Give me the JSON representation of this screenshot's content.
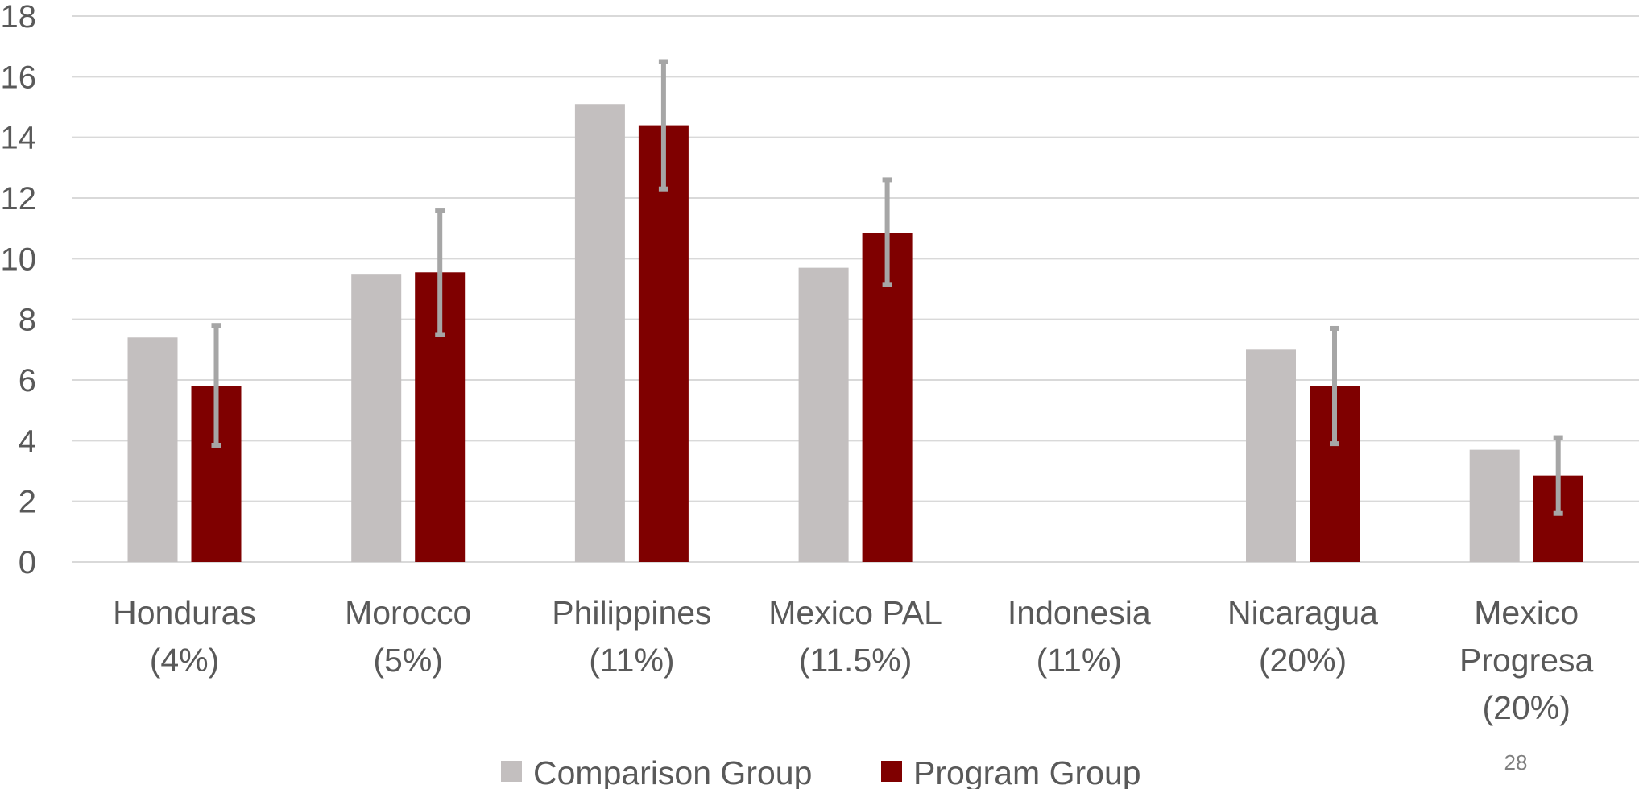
{
  "chart_data": {
    "type": "bar",
    "categories": [
      [
        "Honduras",
        "(4%)"
      ],
      [
        "Morocco",
        "(5%)"
      ],
      [
        "Philippines",
        "(11%)"
      ],
      [
        "Mexico PAL",
        "(11.5%)"
      ],
      [
        "Indonesia",
        "(11%)"
      ],
      [
        "Nicaragua",
        "(20%)"
      ],
      [
        "Mexico",
        "Progresa",
        "(20%)"
      ]
    ],
    "series": [
      {
        "name": "Comparison Group",
        "color": "#c3bfbf",
        "values": [
          7.4,
          9.5,
          15.1,
          9.7,
          null,
          7.0,
          3.7
        ]
      },
      {
        "name": "Program Group",
        "color": "#7f0000",
        "values": [
          5.8,
          9.55,
          14.4,
          10.85,
          null,
          5.8,
          2.85
        ],
        "error_bars": [
          [
            3.85,
            7.8
          ],
          [
            7.5,
            11.6
          ],
          [
            12.3,
            16.5
          ],
          [
            9.15,
            12.6
          ],
          null,
          [
            3.9,
            7.7
          ],
          [
            1.6,
            4.1
          ]
        ]
      }
    ],
    "yticks": [
      "0",
      "2",
      "4",
      "6",
      "8",
      "10",
      "12",
      "14",
      "16",
      "18"
    ],
    "ylim": [
      0,
      18
    ],
    "grid": true,
    "legend_position": "bottom"
  },
  "page_number": "28",
  "colors": {
    "gridline": "#d9d9d9",
    "error_bar": "#a6a6a6",
    "text": "#595959"
  }
}
